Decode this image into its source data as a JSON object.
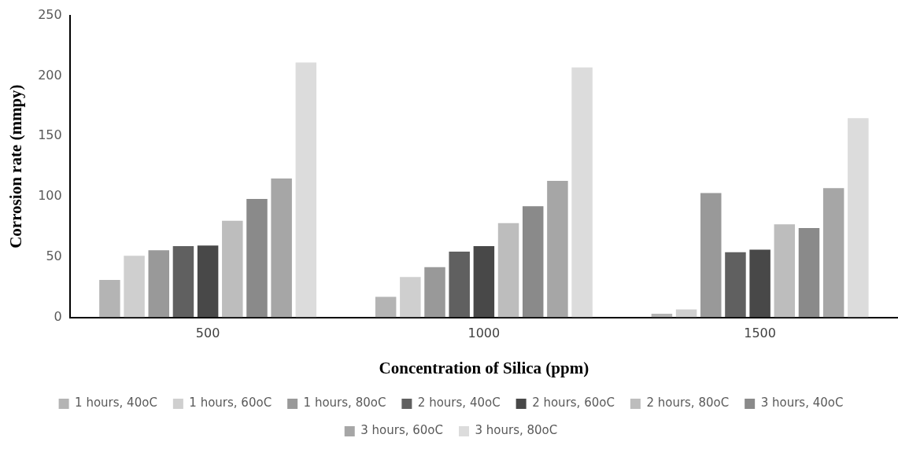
{
  "chart_data": {
    "type": "bar",
    "xlabel": "Concentration of Silica (ppm)",
    "ylabel": "Corrosion rate (mmpy)",
    "categories": [
      "500",
      "1000",
      "1500"
    ],
    "series": [
      {
        "name": "1 hours, 40oC",
        "color": "#b4b4b4",
        "values": [
          31,
          17,
          3
        ]
      },
      {
        "name": "1 hours, 60oC",
        "color": "#cfcfcf",
        "values": [
          51,
          33.5,
          6.5
        ]
      },
      {
        "name": "1 hours, 80oC",
        "color": "#999999",
        "values": [
          55.5,
          41.5,
          103
        ]
      },
      {
        "name": "2 hours, 40oC",
        "color": "#606060",
        "values": [
          59,
          54.5,
          54
        ]
      },
      {
        "name": "2 hours, 60oC",
        "color": "#484848",
        "values": [
          59.5,
          59,
          56
        ]
      },
      {
        "name": "2 hours, 80oC",
        "color": "#bdbdbd",
        "values": [
          80,
          78,
          77
        ]
      },
      {
        "name": "3 hours, 40oC",
        "color": "#8a8a8a",
        "values": [
          98,
          92,
          74
        ]
      },
      {
        "name": "3 hours, 60oC",
        "color": "#a6a6a6",
        "values": [
          115,
          113,
          107
        ]
      },
      {
        "name": "3 hours, 80oC",
        "color": "#dcdcdc",
        "values": [
          211,
          207,
          165
        ]
      }
    ],
    "ylim": [
      0,
      250
    ],
    "yticks": [
      0,
      50,
      100,
      150,
      200,
      250
    ],
    "grid": false,
    "legend": "bottom"
  }
}
